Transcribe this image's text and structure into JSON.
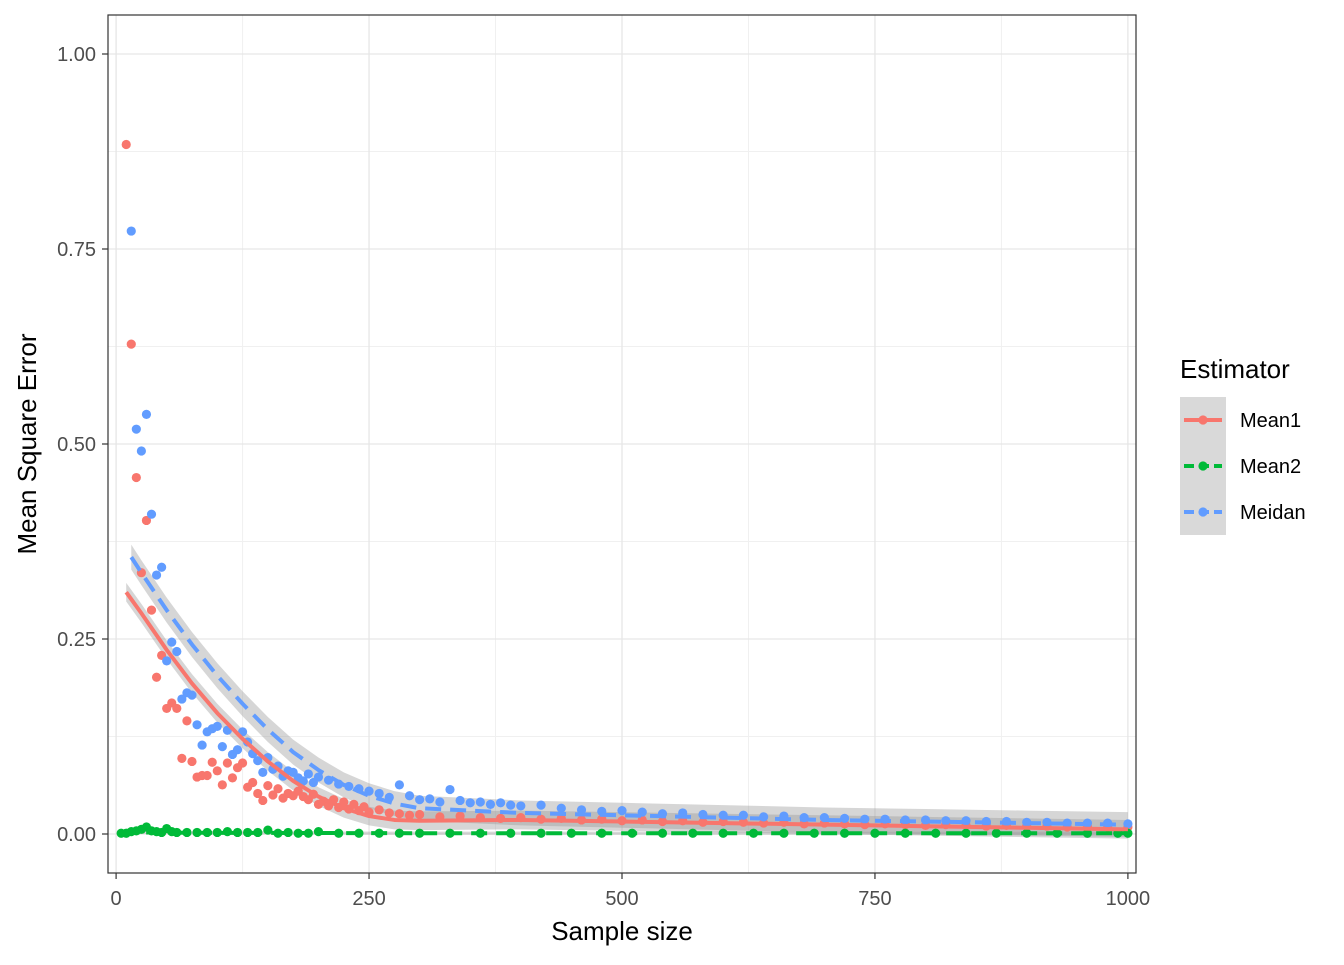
{
  "chart_data": {
    "type": "scatter",
    "xlabel": "Sample size",
    "ylabel": "Mean Square Error",
    "xlim": [
      -8,
      1008
    ],
    "ylim": [
      -0.05,
      1.05
    ],
    "x_ticks": [
      0,
      250,
      500,
      750,
      1000
    ],
    "x_tick_labels": [
      "0",
      "250",
      "500",
      "750",
      "1000"
    ],
    "y_ticks": [
      0,
      0.25,
      0.5,
      0.75,
      1.0
    ],
    "y_tick_labels": [
      "0.00",
      "0.25",
      "0.50",
      "0.75",
      "1.00"
    ],
    "grid": true,
    "legend": {
      "title": "Estimator",
      "position": "right",
      "entries": [
        {
          "name": "Mean1",
          "color": "#F8766D",
          "linetype": "solid"
        },
        {
          "name": "Mean2",
          "color": "#00BA38",
          "linetype": "dashed"
        },
        {
          "name": "Meidan",
          "color": "#619CFF",
          "linetype": "dashed"
        }
      ]
    },
    "series": [
      {
        "name": "Mean1",
        "color": "#F8766D",
        "points": [
          [
            10,
            0.884
          ],
          [
            15,
            0.628
          ],
          [
            20,
            0.457
          ],
          [
            25,
            0.335
          ],
          [
            30,
            0.402
          ],
          [
            35,
            0.287
          ],
          [
            40,
            0.201
          ],
          [
            45,
            0.229
          ],
          [
            50,
            0.161
          ],
          [
            55,
            0.168
          ],
          [
            60,
            0.161
          ],
          [
            65,
            0.097
          ],
          [
            70,
            0.145
          ],
          [
            75,
            0.093
          ],
          [
            80,
            0.073
          ],
          [
            85,
            0.075
          ],
          [
            90,
            0.075
          ],
          [
            95,
            0.092
          ],
          [
            100,
            0.081
          ],
          [
            105,
            0.063
          ],
          [
            110,
            0.091
          ],
          [
            115,
            0.072
          ],
          [
            120,
            0.085
          ],
          [
            125,
            0.091
          ],
          [
            130,
            0.06
          ],
          [
            135,
            0.066
          ],
          [
            140,
            0.052
          ],
          [
            145,
            0.043
          ],
          [
            150,
            0.062
          ],
          [
            155,
            0.05
          ],
          [
            160,
            0.058
          ],
          [
            165,
            0.046
          ],
          [
            170,
            0.052
          ],
          [
            175,
            0.049
          ],
          [
            180,
            0.055
          ],
          [
            185,
            0.048
          ],
          [
            190,
            0.044
          ],
          [
            195,
            0.051
          ],
          [
            200,
            0.038
          ],
          [
            205,
            0.042
          ],
          [
            210,
            0.036
          ],
          [
            215,
            0.044
          ],
          [
            220,
            0.034
          ],
          [
            225,
            0.041
          ],
          [
            230,
            0.032
          ],
          [
            235,
            0.038
          ],
          [
            240,
            0.03
          ],
          [
            245,
            0.035
          ],
          [
            250,
            0.028
          ],
          [
            260,
            0.031
          ],
          [
            270,
            0.027
          ],
          [
            280,
            0.026
          ],
          [
            290,
            0.024
          ],
          [
            300,
            0.025
          ],
          [
            320,
            0.022
          ],
          [
            340,
            0.023
          ],
          [
            360,
            0.021
          ],
          [
            380,
            0.02
          ],
          [
            400,
            0.021
          ],
          [
            420,
            0.019
          ],
          [
            440,
            0.02
          ],
          [
            460,
            0.018
          ],
          [
            480,
            0.019
          ],
          [
            500,
            0.017
          ],
          [
            520,
            0.018
          ],
          [
            540,
            0.016
          ],
          [
            560,
            0.017
          ],
          [
            580,
            0.015
          ],
          [
            600,
            0.016
          ],
          [
            620,
            0.015
          ],
          [
            640,
            0.014
          ],
          [
            660,
            0.015
          ],
          [
            680,
            0.013
          ],
          [
            700,
            0.014
          ],
          [
            720,
            0.013
          ],
          [
            740,
            0.012
          ],
          [
            760,
            0.013
          ],
          [
            780,
            0.012
          ],
          [
            800,
            0.011
          ],
          [
            820,
            0.012
          ],
          [
            840,
            0.011
          ],
          [
            860,
            0.01
          ],
          [
            880,
            0.011
          ],
          [
            900,
            0.01
          ],
          [
            920,
            0.01
          ],
          [
            940,
            0.009
          ],
          [
            960,
            0.01
          ],
          [
            980,
            0.009
          ],
          [
            1000,
            0.009
          ]
        ],
        "smooth": [
          [
            10,
            0.31
          ],
          [
            25,
            0.283
          ],
          [
            50,
            0.236
          ],
          [
            75,
            0.193
          ],
          [
            100,
            0.155
          ],
          [
            125,
            0.122
          ],
          [
            150,
            0.093
          ],
          [
            175,
            0.068
          ],
          [
            200,
            0.048
          ],
          [
            225,
            0.033
          ],
          [
            250,
            0.023
          ],
          [
            275,
            0.018
          ],
          [
            300,
            0.017
          ],
          [
            400,
            0.018
          ],
          [
            500,
            0.016
          ],
          [
            600,
            0.014
          ],
          [
            700,
            0.012
          ],
          [
            800,
            0.01
          ],
          [
            900,
            0.008
          ],
          [
            1000,
            0.006
          ]
        ],
        "band_halfwidth": 0.012
      },
      {
        "name": "Mean2",
        "color": "#00BA38",
        "points": [
          [
            5,
            0.001
          ],
          [
            10,
            0.001
          ],
          [
            15,
            0.003
          ],
          [
            20,
            0.004
          ],
          [
            25,
            0.006
          ],
          [
            30,
            0.009
          ],
          [
            35,
            0.004
          ],
          [
            40,
            0.003
          ],
          [
            45,
            0.002
          ],
          [
            50,
            0.007
          ],
          [
            55,
            0.003
          ],
          [
            60,
            0.002
          ],
          [
            70,
            0.002
          ],
          [
            80,
            0.002
          ],
          [
            90,
            0.002
          ],
          [
            100,
            0.002
          ],
          [
            110,
            0.003
          ],
          [
            120,
            0.002
          ],
          [
            130,
            0.002
          ],
          [
            140,
            0.002
          ],
          [
            150,
            0.005
          ],
          [
            160,
            0.001
          ],
          [
            170,
            0.002
          ],
          [
            180,
            0.001
          ],
          [
            190,
            0.001
          ],
          [
            200,
            0.003
          ],
          [
            220,
            0.001
          ],
          [
            240,
            0.001
          ],
          [
            260,
            0.001
          ],
          [
            280,
            0.001
          ],
          [
            300,
            0.001
          ],
          [
            330,
            0.001
          ],
          [
            360,
            0.001
          ],
          [
            390,
            0.001
          ],
          [
            420,
            0.001
          ],
          [
            450,
            0.001
          ],
          [
            480,
            0.001
          ],
          [
            510,
            0.001
          ],
          [
            540,
            0.001
          ],
          [
            570,
            0.001
          ],
          [
            600,
            0.001
          ],
          [
            630,
            0.001
          ],
          [
            660,
            0.001
          ],
          [
            690,
            0.001
          ],
          [
            720,
            0.001
          ],
          [
            750,
            0.001
          ],
          [
            780,
            0.001
          ],
          [
            810,
            0.001
          ],
          [
            840,
            0.001
          ],
          [
            870,
            0.001
          ],
          [
            900,
            0.001
          ],
          [
            930,
            0.001
          ],
          [
            960,
            0.001
          ],
          [
            990,
            0.001
          ],
          [
            1000,
            0.001
          ]
        ],
        "smooth": [
          [
            5,
            0.002
          ],
          [
            100,
            0.0015
          ],
          [
            300,
            0.001
          ],
          [
            600,
            0.001
          ],
          [
            1000,
            0.001
          ]
        ],
        "band_halfwidth": 0.002
      },
      {
        "name": "Meidan",
        "color": "#619CFF",
        "points": [
          [
            15,
            0.773
          ],
          [
            20,
            0.519
          ],
          [
            25,
            0.491
          ],
          [
            30,
            0.538
          ],
          [
            35,
            0.41
          ],
          [
            40,
            0.332
          ],
          [
            45,
            0.342
          ],
          [
            50,
            0.222
          ],
          [
            55,
            0.246
          ],
          [
            60,
            0.234
          ],
          [
            65,
            0.173
          ],
          [
            70,
            0.181
          ],
          [
            75,
            0.178
          ],
          [
            80,
            0.14
          ],
          [
            85,
            0.114
          ],
          [
            90,
            0.131
          ],
          [
            95,
            0.135
          ],
          [
            100,
            0.138
          ],
          [
            105,
            0.112
          ],
          [
            110,
            0.133
          ],
          [
            115,
            0.102
          ],
          [
            120,
            0.108
          ],
          [
            125,
            0.131
          ],
          [
            130,
            0.118
          ],
          [
            135,
            0.103
          ],
          [
            140,
            0.094
          ],
          [
            145,
            0.079
          ],
          [
            150,
            0.098
          ],
          [
            155,
            0.083
          ],
          [
            160,
            0.087
          ],
          [
            165,
            0.074
          ],
          [
            170,
            0.081
          ],
          [
            175,
            0.079
          ],
          [
            180,
            0.072
          ],
          [
            185,
            0.068
          ],
          [
            190,
            0.077
          ],
          [
            195,
            0.066
          ],
          [
            200,
            0.073
          ],
          [
            210,
            0.069
          ],
          [
            220,
            0.064
          ],
          [
            230,
            0.061
          ],
          [
            240,
            0.058
          ],
          [
            250,
            0.055
          ],
          [
            260,
            0.052
          ],
          [
            270,
            0.047
          ],
          [
            280,
            0.063
          ],
          [
            290,
            0.049
          ],
          [
            300,
            0.044
          ],
          [
            310,
            0.045
          ],
          [
            320,
            0.041
          ],
          [
            330,
            0.057
          ],
          [
            340,
            0.043
          ],
          [
            350,
            0.04
          ],
          [
            360,
            0.041
          ],
          [
            370,
            0.038
          ],
          [
            380,
            0.04
          ],
          [
            390,
            0.037
          ],
          [
            400,
            0.036
          ],
          [
            420,
            0.037
          ],
          [
            440,
            0.033
          ],
          [
            460,
            0.031
          ],
          [
            480,
            0.029
          ],
          [
            500,
            0.03
          ],
          [
            520,
            0.028
          ],
          [
            540,
            0.026
          ],
          [
            560,
            0.027
          ],
          [
            580,
            0.025
          ],
          [
            600,
            0.024
          ],
          [
            620,
            0.024
          ],
          [
            640,
            0.022
          ],
          [
            660,
            0.023
          ],
          [
            680,
            0.021
          ],
          [
            700,
            0.021
          ],
          [
            720,
            0.02
          ],
          [
            740,
            0.019
          ],
          [
            760,
            0.019
          ],
          [
            780,
            0.018
          ],
          [
            800,
            0.018
          ],
          [
            820,
            0.017
          ],
          [
            840,
            0.017
          ],
          [
            860,
            0.016
          ],
          [
            880,
            0.016
          ],
          [
            900,
            0.015
          ],
          [
            920,
            0.015
          ],
          [
            940,
            0.014
          ],
          [
            960,
            0.014
          ],
          [
            980,
            0.014
          ],
          [
            1000,
            0.013
          ]
        ],
        "smooth": [
          [
            15,
            0.355
          ],
          [
            25,
            0.335
          ],
          [
            50,
            0.287
          ],
          [
            75,
            0.243
          ],
          [
            100,
            0.203
          ],
          [
            125,
            0.167
          ],
          [
            150,
            0.134
          ],
          [
            175,
            0.105
          ],
          [
            200,
            0.082
          ],
          [
            225,
            0.063
          ],
          [
            250,
            0.049
          ],
          [
            275,
            0.039
          ],
          [
            300,
            0.033
          ],
          [
            400,
            0.027
          ],
          [
            500,
            0.024
          ],
          [
            600,
            0.021
          ],
          [
            700,
            0.018
          ],
          [
            800,
            0.016
          ],
          [
            900,
            0.014
          ],
          [
            1000,
            0.012
          ]
        ],
        "band_halfwidth": 0.016
      }
    ]
  }
}
